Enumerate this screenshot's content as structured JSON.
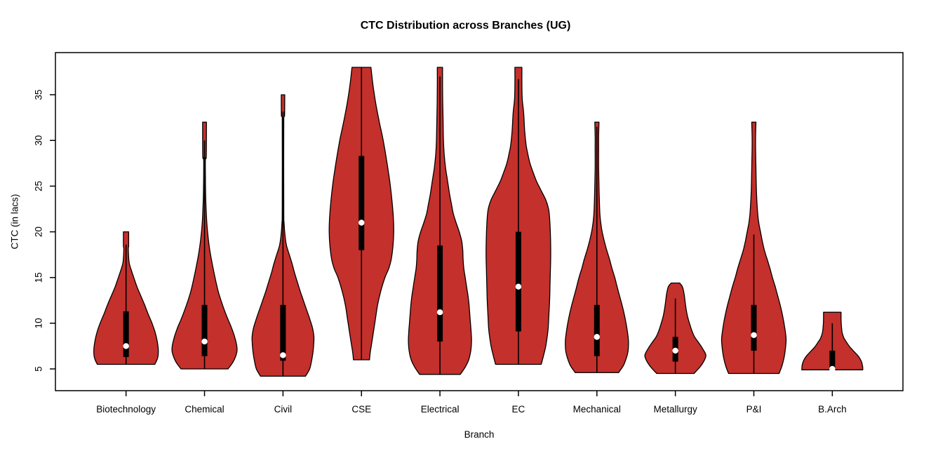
{
  "title": "CTC Distribution across Branches (UG)",
  "x_axis": {
    "label": "Branch"
  },
  "y_axis": {
    "label": "CTC (in lacs)",
    "ticks": [
      5,
      10,
      15,
      20,
      25,
      30,
      35
    ]
  },
  "colors": {
    "violin_fill": "#C4302B",
    "violin_outline": "#000000",
    "box": "#000000",
    "median_dot": "#FFFFFF",
    "axis": "#000000",
    "text": "#000000",
    "background": "#FFFFFF"
  },
  "chart_data": {
    "type": "violin",
    "title": "CTC Distribution across Branches (UG)",
    "xlabel": "Branch",
    "ylabel": "CTC (in lacs)",
    "y_ticks": [
      5,
      10,
      15,
      20,
      25,
      30,
      35
    ],
    "ylim": [
      2.62,
      39.61
    ],
    "grid": false,
    "legend": false,
    "categories": [
      "Biotechnology",
      "Chemical",
      "Civil",
      "CSE",
      "Electrical",
      "EC",
      "Mechanical",
      "Metallurgy",
      "P&I",
      "B.Arch"
    ],
    "series": [
      {
        "branch": "Biotechnology",
        "min": 5.5,
        "max": 20,
        "q1": 6.3,
        "median": 7.5,
        "q3": 11.3,
        "whisker_high": 18.6,
        "profile": [
          [
            5.5,
            0.82
          ],
          [
            6.2,
            0.9
          ],
          [
            7,
            0.92
          ],
          [
            8,
            0.89
          ],
          [
            9,
            0.83
          ],
          [
            10,
            0.74
          ],
          [
            11,
            0.63
          ],
          [
            12,
            0.53
          ],
          [
            13,
            0.42
          ],
          [
            14,
            0.31
          ],
          [
            15,
            0.22
          ],
          [
            15.8,
            0.15
          ],
          [
            16.6,
            0.09
          ],
          [
            17.5,
            0.07
          ],
          [
            18.3,
            0.065
          ],
          [
            18.45,
            0.075
          ],
          [
            20,
            0.075
          ]
        ]
      },
      {
        "branch": "Chemical",
        "min": 5.0,
        "max": 32,
        "q1": 6.4,
        "median": 8.0,
        "q3": 12.0,
        "whisker_high": 30.0,
        "profile": [
          [
            5,
            0.67
          ],
          [
            5.8,
            0.82
          ],
          [
            6.8,
            0.92
          ],
          [
            7.5,
            0.92
          ],
          [
            8.5,
            0.86
          ],
          [
            9.5,
            0.77
          ],
          [
            10.5,
            0.66
          ],
          [
            11.5,
            0.56
          ],
          [
            12.5,
            0.47
          ],
          [
            13.5,
            0.39
          ],
          [
            15,
            0.3
          ],
          [
            16.5,
            0.22
          ],
          [
            18,
            0.15
          ],
          [
            19.5,
            0.1
          ],
          [
            21,
            0.065
          ],
          [
            23,
            0.04
          ],
          [
            24.5,
            0.03
          ],
          [
            26,
            0.025
          ],
          [
            28,
            0.025
          ],
          [
            28.3,
            0.05
          ],
          [
            32,
            0.055
          ]
        ]
      },
      {
        "branch": "Civil",
        "min": 4.2,
        "max": 35,
        "q1": 5.9,
        "median": 6.5,
        "q3": 12.0,
        "whisker_high": 32.6,
        "profile": [
          [
            4.2,
            0.64
          ],
          [
            5,
            0.76
          ],
          [
            6,
            0.82
          ],
          [
            7,
            0.86
          ],
          [
            8,
            0.88
          ],
          [
            8.6,
            0.88
          ],
          [
            9.5,
            0.84
          ],
          [
            10.5,
            0.76
          ],
          [
            11.5,
            0.67
          ],
          [
            12.5,
            0.58
          ],
          [
            13.5,
            0.49
          ],
          [
            14.5,
            0.41
          ],
          [
            15.5,
            0.33
          ],
          [
            16.5,
            0.26
          ],
          [
            17.5,
            0.18
          ],
          [
            18.5,
            0.1
          ],
          [
            19.5,
            0.06
          ],
          [
            21,
            0.03
          ],
          [
            22.5,
            0.022
          ],
          [
            32.4,
            0.022
          ],
          [
            32.7,
            0.045
          ],
          [
            35,
            0.05
          ]
        ]
      },
      {
        "branch": "CSE",
        "min": 6.0,
        "max": 38,
        "q1": 18.0,
        "median": 21.0,
        "q3": 28.3,
        "whisker_high": 38,
        "profile": [
          [
            6,
            0.23
          ],
          [
            6.8,
            0.25
          ],
          [
            8,
            0.3
          ],
          [
            9,
            0.34
          ],
          [
            10.5,
            0.4
          ],
          [
            12,
            0.46
          ],
          [
            13.5,
            0.55
          ],
          [
            15,
            0.67
          ],
          [
            16,
            0.78
          ],
          [
            17,
            0.85
          ],
          [
            18.5,
            0.9
          ],
          [
            20,
            0.92
          ],
          [
            21.5,
            0.91
          ],
          [
            23,
            0.88
          ],
          [
            24.5,
            0.84
          ],
          [
            26,
            0.79
          ],
          [
            28,
            0.71
          ],
          [
            30,
            0.62
          ],
          [
            32,
            0.51
          ],
          [
            34,
            0.41
          ],
          [
            36,
            0.33
          ],
          [
            38,
            0.27
          ]
        ]
      },
      {
        "branch": "Electrical",
        "min": 4.4,
        "max": 38,
        "q1": 8.0,
        "median": 11.2,
        "q3": 18.5,
        "whisker_high": 37.0,
        "profile": [
          [
            4.4,
            0.58
          ],
          [
            5.2,
            0.72
          ],
          [
            6,
            0.82
          ],
          [
            7,
            0.88
          ],
          [
            8,
            0.9
          ],
          [
            9,
            0.89
          ],
          [
            10,
            0.87
          ],
          [
            11,
            0.85
          ],
          [
            12,
            0.83
          ],
          [
            13,
            0.8
          ],
          [
            14,
            0.76
          ],
          [
            15,
            0.72
          ],
          [
            16,
            0.68
          ],
          [
            17,
            0.66
          ],
          [
            18,
            0.65
          ],
          [
            19,
            0.62
          ],
          [
            20,
            0.55
          ],
          [
            21,
            0.46
          ],
          [
            22,
            0.38
          ],
          [
            23,
            0.33
          ],
          [
            24,
            0.28
          ],
          [
            25,
            0.24
          ],
          [
            26,
            0.2
          ],
          [
            27,
            0.16
          ],
          [
            28.5,
            0.12
          ],
          [
            30,
            0.1
          ],
          [
            32,
            0.09
          ],
          [
            34,
            0.08
          ],
          [
            36,
            0.075
          ],
          [
            38,
            0.075
          ]
        ]
      },
      {
        "branch": "EC",
        "min": 5.5,
        "max": 38,
        "q1": 9.1,
        "median": 14.0,
        "q3": 20.0,
        "whisker_high": 36.7,
        "profile": [
          [
            5.5,
            0.65
          ],
          [
            6.5,
            0.72
          ],
          [
            7.5,
            0.78
          ],
          [
            8.5,
            0.82
          ],
          [
            9.5,
            0.85
          ],
          [
            11,
            0.87
          ],
          [
            12.5,
            0.89
          ],
          [
            14,
            0.9
          ],
          [
            15.5,
            0.91
          ],
          [
            17,
            0.92
          ],
          [
            18.5,
            0.92
          ],
          [
            20,
            0.91
          ],
          [
            21.5,
            0.89
          ],
          [
            22.5,
            0.86
          ],
          [
            23.5,
            0.78
          ],
          [
            24.5,
            0.65
          ],
          [
            25.5,
            0.52
          ],
          [
            26.5,
            0.42
          ],
          [
            27.5,
            0.33
          ],
          [
            28.5,
            0.27
          ],
          [
            29.5,
            0.22
          ],
          [
            31,
            0.18
          ],
          [
            33,
            0.15
          ],
          [
            34.5,
            0.11
          ],
          [
            36,
            0.1
          ],
          [
            38,
            0.1
          ]
        ]
      },
      {
        "branch": "Mechanical",
        "min": 4.6,
        "max": 32,
        "q1": 6.4,
        "median": 8.5,
        "q3": 12.0,
        "whisker_high": 31.5,
        "profile": [
          [
            4.6,
            0.62
          ],
          [
            5.4,
            0.76
          ],
          [
            6.2,
            0.84
          ],
          [
            7,
            0.89
          ],
          [
            8,
            0.9
          ],
          [
            8.8,
            0.88
          ],
          [
            9.8,
            0.84
          ],
          [
            10.8,
            0.79
          ],
          [
            11.8,
            0.73
          ],
          [
            12.8,
            0.66
          ],
          [
            13.8,
            0.59
          ],
          [
            15,
            0.51
          ],
          [
            16,
            0.43
          ],
          [
            17,
            0.36
          ],
          [
            18,
            0.28
          ],
          [
            19,
            0.21
          ],
          [
            20,
            0.15
          ],
          [
            21,
            0.11
          ],
          [
            22,
            0.085
          ],
          [
            23.5,
            0.07
          ],
          [
            25,
            0.06
          ],
          [
            27,
            0.05
          ],
          [
            29,
            0.05
          ],
          [
            30.5,
            0.05
          ],
          [
            32,
            0.06
          ]
        ]
      },
      {
        "branch": "Metallurgy",
        "min": 4.5,
        "max": 14.4,
        "q1": 5.8,
        "median": 7.0,
        "q3": 8.5,
        "whisker_high": 12.7,
        "profile": [
          [
            4.5,
            0.53
          ],
          [
            5.2,
            0.7
          ],
          [
            5.9,
            0.82
          ],
          [
            6.5,
            0.87
          ],
          [
            7.2,
            0.78
          ],
          [
            7.9,
            0.66
          ],
          [
            8.5,
            0.55
          ],
          [
            9.2,
            0.47
          ],
          [
            9.9,
            0.41
          ],
          [
            10.7,
            0.35
          ],
          [
            11.5,
            0.31
          ],
          [
            12.3,
            0.28
          ],
          [
            13.2,
            0.25
          ],
          [
            14,
            0.2
          ],
          [
            14.4,
            0.12
          ]
        ]
      },
      {
        "branch": "P&I",
        "min": 4.5,
        "max": 32,
        "q1": 7.0,
        "median": 8.7,
        "q3": 12.0,
        "whisker_high": 19.7,
        "profile": [
          [
            4.5,
            0.72
          ],
          [
            5.3,
            0.8
          ],
          [
            6.2,
            0.86
          ],
          [
            7.2,
            0.9
          ],
          [
            8.2,
            0.92
          ],
          [
            9,
            0.9
          ],
          [
            10,
            0.86
          ],
          [
            11,
            0.81
          ],
          [
            12,
            0.75
          ],
          [
            13,
            0.68
          ],
          [
            14,
            0.61
          ],
          [
            15,
            0.53
          ],
          [
            16,
            0.46
          ],
          [
            17,
            0.38
          ],
          [
            18,
            0.3
          ],
          [
            19,
            0.24
          ],
          [
            20,
            0.19
          ],
          [
            21,
            0.14
          ],
          [
            22,
            0.11
          ],
          [
            23.5,
            0.085
          ],
          [
            25,
            0.07
          ],
          [
            27,
            0.06
          ],
          [
            29,
            0.05
          ],
          [
            30.5,
            0.05
          ],
          [
            32,
            0.06
          ]
        ]
      },
      {
        "branch": "B.Arch",
        "min": 4.9,
        "max": 11.2,
        "q1": 5.0,
        "median": 5.0,
        "q3": 7.0,
        "whisker_high": 10.0,
        "profile": [
          [
            4.9,
            0.87
          ],
          [
            5.4,
            0.86
          ],
          [
            5.9,
            0.82
          ],
          [
            6.4,
            0.74
          ],
          [
            6.9,
            0.62
          ],
          [
            7.4,
            0.5
          ],
          [
            7.9,
            0.41
          ],
          [
            8.4,
            0.33
          ],
          [
            9,
            0.28
          ],
          [
            9.7,
            0.26
          ],
          [
            10.4,
            0.25
          ],
          [
            11.2,
            0.25
          ]
        ]
      }
    ]
  }
}
